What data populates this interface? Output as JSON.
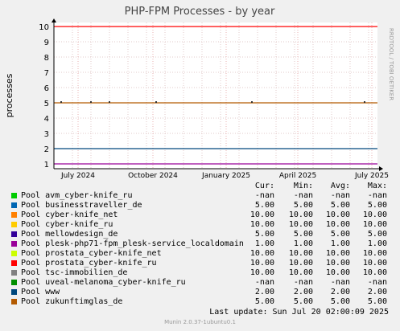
{
  "chart_data": {
    "type": "line",
    "title": "PHP-FPM Processes - by year",
    "ylabel": "processes",
    "xlabel": "",
    "ylim": [
      1,
      10
    ],
    "yticks": [
      1,
      2,
      3,
      4,
      5,
      6,
      7,
      8,
      9,
      10
    ],
    "x_ticks": [
      "July 2024",
      "October 2024",
      "January 2025",
      "April 2025",
      "July 2025"
    ],
    "grid": true,
    "side_text": "RRDTOOL / TOBI OETIKER",
    "footer": "Munin 2.0.37-1ubuntu0.1",
    "last_update": "Last update: Sun Jul 20 02:00:09 2025",
    "columns": [
      "Cur:",
      "Min:",
      "Avg:",
      "Max:"
    ],
    "series": [
      {
        "name": "Pool avm_cyber-knife_ru",
        "color": "#00cc00",
        "cur": "-nan",
        "min": "-nan",
        "avg": "-nan",
        "max": "-nan"
      },
      {
        "name": "Pool businesstraveller_de",
        "color": "#0066b3",
        "cur": "5.00",
        "min": "5.00",
        "avg": "5.00",
        "max": "5.00"
      },
      {
        "name": "Pool cyber-knife_net",
        "color": "#ff8000",
        "cur": "10.00",
        "min": "10.00",
        "avg": "10.00",
        "max": "10.00"
      },
      {
        "name": "Pool cyber-knife_ru",
        "color": "#ffcc00",
        "cur": "10.00",
        "min": "10.00",
        "avg": "10.00",
        "max": "10.00"
      },
      {
        "name": "Pool mellowdesign_de",
        "color": "#330099",
        "cur": "5.00",
        "min": "5.00",
        "avg": "5.00",
        "max": "5.00"
      },
      {
        "name": "Pool plesk-php71-fpm_plesk-service_localdomain",
        "color": "#990099",
        "cur": "1.00",
        "min": "1.00",
        "avg": "1.00",
        "max": "1.00"
      },
      {
        "name": "Pool prostata_cyber-knife_net",
        "color": "#ccff00",
        "cur": "10.00",
        "min": "10.00",
        "avg": "10.00",
        "max": "10.00"
      },
      {
        "name": "Pool prostata_cyber-knife_ru",
        "color": "#ff0000",
        "cur": "10.00",
        "min": "10.00",
        "avg": "10.00",
        "max": "10.00"
      },
      {
        "name": "Pool tsc-immobilien_de",
        "color": "#808080",
        "cur": "10.00",
        "min": "10.00",
        "avg": "10.00",
        "max": "10.00"
      },
      {
        "name": "Pool uveal-melanoma_cyber-knife_ru",
        "color": "#008f00",
        "cur": "-nan",
        "min": "-nan",
        "avg": "-nan",
        "max": "-nan"
      },
      {
        "name": "Pool www",
        "color": "#00487d",
        "cur": "2.00",
        "min": "2.00",
        "avg": "2.00",
        "max": "2.00"
      },
      {
        "name": "Pool zukunftimglas_de",
        "color": "#b35a00",
        "cur": "5.00",
        "min": "5.00",
        "avg": "5.00",
        "max": "5.00"
      }
    ],
    "lines": [
      {
        "value": 10,
        "color": "#ff0000"
      },
      {
        "value": 5,
        "color": "#b35a00"
      },
      {
        "value": 2,
        "color": "#00487d"
      },
      {
        "value": 1,
        "color": "#990099"
      }
    ]
  }
}
